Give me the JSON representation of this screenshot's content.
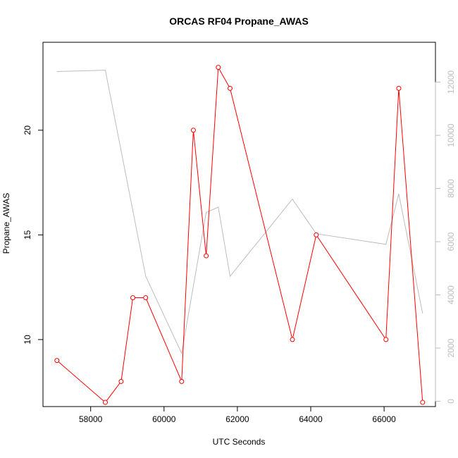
{
  "chart_data": {
    "type": "line",
    "title": "ORCAS RF04 Propane_AWAS",
    "xlabel": "UTC Seconds",
    "ylabel": "Propane_AWAS",
    "xlim": [
      56700,
      67400
    ],
    "ylim": [
      6.8,
      24.2
    ],
    "x_ticks": [
      58000,
      60000,
      62000,
      64000,
      66000
    ],
    "y_ticks": [
      10,
      15,
      20
    ],
    "y2lim": [
      -200,
      13500
    ],
    "y2_ticks": [
      0,
      2000,
      4000,
      6000,
      8000,
      10000,
      12000
    ],
    "series": [
      {
        "axis": "left",
        "color": "#ff0000",
        "markers": "open-circle",
        "points": [
          [
            57080,
            9
          ],
          [
            58400,
            7
          ],
          [
            58830,
            8
          ],
          [
            59150,
            12
          ],
          [
            59500,
            12
          ],
          [
            60480,
            8
          ],
          [
            60800,
            20
          ],
          [
            61150,
            14
          ],
          [
            61480,
            23
          ],
          [
            61800,
            22
          ],
          [
            63500,
            10
          ],
          [
            64150,
            15
          ],
          [
            66050,
            10
          ],
          [
            66400,
            22
          ],
          [
            67050,
            7
          ]
        ]
      },
      {
        "axis": "right",
        "color": "#bdbdbd",
        "markers": "none",
        "points": [
          [
            57080,
            12400
          ],
          [
            58400,
            12450
          ],
          [
            59500,
            4700
          ],
          [
            60480,
            1800
          ],
          [
            61150,
            7100
          ],
          [
            61480,
            7300
          ],
          [
            61800,
            4700
          ],
          [
            63500,
            7600
          ],
          [
            64150,
            6300
          ],
          [
            66050,
            5900
          ],
          [
            66400,
            7800
          ],
          [
            67050,
            3300
          ]
        ]
      }
    ]
  }
}
